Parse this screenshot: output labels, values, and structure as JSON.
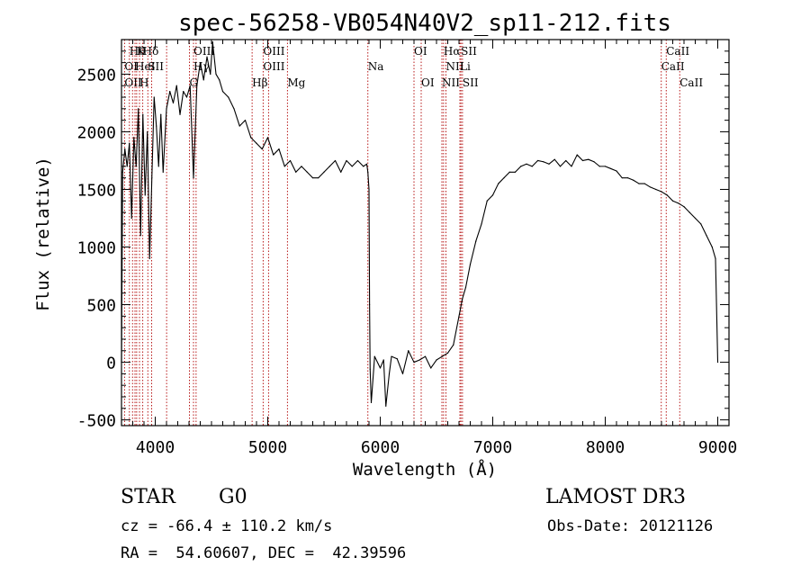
{
  "chart_data": {
    "type": "line",
    "title": "spec-56258-VB054N40V2_sp11-212.fits",
    "xlabel": "Wavelength (Å)",
    "ylabel": "Flux (relative)",
    "xlim": [
      3700,
      9100
    ],
    "ylim": [
      -550,
      2800
    ],
    "xticks": [
      4000,
      5000,
      6000,
      7000,
      8000,
      9000
    ],
    "yticks": [
      -500,
      0,
      500,
      1000,
      1500,
      2000,
      2500
    ],
    "line_color": "#000000",
    "marker_color": "#b00000",
    "series": [
      {
        "x": [
          3700,
          3710,
          3730,
          3750,
          3770,
          3790,
          3810,
          3830,
          3850,
          3870,
          3890,
          3910,
          3930,
          3950,
          3970,
          3990,
          4010,
          4030,
          4050,
          4070,
          4100,
          4130,
          4160,
          4190,
          4220,
          4250,
          4280,
          4310,
          4340,
          4370,
          4400,
          4430,
          4460,
          4490,
          4510,
          4540,
          4570,
          4600,
          4650,
          4700,
          4750,
          4800,
          4850,
          4900,
          4950,
          5000,
          5050,
          5100,
          5150,
          5200,
          5250,
          5300,
          5350,
          5400,
          5450,
          5500,
          5550,
          5600,
          5650,
          5700,
          5750,
          5800,
          5850,
          5880,
          5890,
          5900,
          5905,
          5910,
          5920,
          5950,
          6000,
          6030,
          6050,
          6080,
          6100,
          6150,
          6200,
          6250,
          6300,
          6350,
          6400,
          6450,
          6500,
          6550,
          6600,
          6650,
          6700,
          6730,
          6760,
          6800,
          6850,
          6900,
          6950,
          7000,
          7050,
          7100,
          7150,
          7200,
          7250,
          7300,
          7350,
          7400,
          7450,
          7500,
          7550,
          7600,
          7650,
          7700,
          7750,
          7800,
          7850,
          7900,
          7950,
          8000,
          8050,
          8100,
          8150,
          8200,
          8250,
          8300,
          8350,
          8400,
          8450,
          8500,
          8550,
          8600,
          8650,
          8700,
          8750,
          8800,
          8850,
          8900,
          8950,
          8980,
          9000
        ],
        "y": [
          0,
          1650,
          1850,
          1700,
          1900,
          1250,
          1950,
          1700,
          2200,
          1100,
          2150,
          1450,
          2000,
          900,
          1600,
          2300,
          2050,
          1700,
          2150,
          1650,
          2200,
          2350,
          2250,
          2400,
          2150,
          2350,
          2300,
          2400,
          1600,
          2400,
          2600,
          2450,
          2650,
          2500,
          2780,
          2500,
          2450,
          2350,
          2300,
          2200,
          2050,
          2100,
          1950,
          1900,
          1850,
          1950,
          1800,
          1850,
          1700,
          1750,
          1650,
          1700,
          1650,
          1600,
          1600,
          1650,
          1700,
          1750,
          1650,
          1750,
          1700,
          1750,
          1700,
          1720,
          1650,
          1500,
          500,
          -60,
          -350,
          50,
          -50,
          20,
          -380,
          -100,
          50,
          30,
          -100,
          100,
          0,
          20,
          50,
          -50,
          20,
          50,
          80,
          150,
          400,
          550,
          650,
          850,
          1050,
          1200,
          1400,
          1450,
          1550,
          1600,
          1650,
          1650,
          1700,
          1720,
          1700,
          1750,
          1740,
          1720,
          1760,
          1700,
          1750,
          1700,
          1800,
          1750,
          1760,
          1740,
          1700,
          1700,
          1680,
          1660,
          1600,
          1600,
          1580,
          1550,
          1550,
          1520,
          1500,
          1480,
          1450,
          1400,
          1380,
          1350,
          1300,
          1250,
          1200,
          1100,
          1000,
          900,
          0
        ]
      }
    ],
    "lines_top": [
      {
        "wave": 3770,
        "label": "Hθ"
      },
      {
        "wave": 3835,
        "label": "K"
      },
      {
        "wave": 3889,
        "label": "Hδ"
      },
      {
        "wave": 4340,
        "label": "OIII"
      },
      {
        "wave": 4959,
        "label": "OIII"
      },
      {
        "wave": 6300,
        "label": "OI"
      },
      {
        "wave": 6563,
        "label": "Hα"
      },
      {
        "wave": 6717,
        "label": "SII"
      },
      {
        "wave": 8542,
        "label": "CaII"
      }
    ],
    "lines_mid": [
      {
        "wave": 3727,
        "label": "OI"
      },
      {
        "wave": 3820,
        "label": "HeI"
      },
      {
        "wave": 3934,
        "label": "SII"
      },
      {
        "wave": 4340,
        "label": "Hγ"
      },
      {
        "wave": 4959,
        "label": "OIII"
      },
      {
        "wave": 5890,
        "label": "Na"
      },
      {
        "wave": 6584,
        "label": "NII"
      },
      {
        "wave": 6708,
        "label": "Li"
      },
      {
        "wave": 8498,
        "label": "CaII"
      }
    ],
    "lines_bot": [
      {
        "wave": 3727,
        "label": "OII"
      },
      {
        "wave": 3860,
        "label": "H"
      },
      {
        "wave": 4304,
        "label": "G"
      },
      {
        "wave": 4861,
        "label": "Hβ"
      },
      {
        "wave": 5175,
        "label": "Mg"
      },
      {
        "wave": 6364,
        "label": "OI"
      },
      {
        "wave": 6548,
        "label": "NII"
      },
      {
        "wave": 6731,
        "label": "SII"
      },
      {
        "wave": 8662,
        "label": "CaII"
      }
    ],
    "line_positions": [
      3727,
      3770,
      3798,
      3820,
      3835,
      3860,
      3889,
      3934,
      3968,
      4101,
      4304,
      4340,
      4363,
      4861,
      4959,
      5007,
      5175,
      5890,
      6300,
      6364,
      6548,
      6563,
      6584,
      6708,
      6717,
      6731,
      8498,
      8542,
      8662
    ]
  },
  "info": {
    "object_class": "STAR",
    "subclass": "G0",
    "survey": "LAMOST DR3",
    "cz": "cz = -66.4 ± 110.2 km/s",
    "obs_date": "Obs-Date: 20121126",
    "coords": "RA =  54.60607, DEC =  42.39596"
  }
}
